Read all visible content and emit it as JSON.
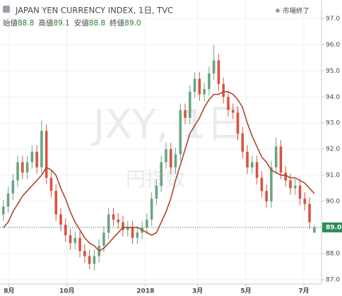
{
  "chart_data": {
    "type": "candlestick",
    "title": "JAPAN YEN CURRENCY INDEX, 1日, TVC",
    "status": "市場終了",
    "watermark": "JXY, 1日",
    "watermark_sub": "円指数",
    "header": [
      {
        "label": "始値",
        "value": "88.8"
      },
      {
        "label": "高値",
        "value": "89.1"
      },
      {
        "label": "安値",
        "value": "88.8"
      },
      {
        "label": "終値",
        "value": "89.0"
      }
    ],
    "last_price_label": "89.0",
    "up_color": "#6ba583",
    "down_color": "#d75442",
    "open": [
      89.5,
      89.8,
      90.3,
      90.8,
      91.5,
      91.1,
      91.5,
      91.9,
      91.3,
      92.7,
      90.9,
      90.4,
      89.5,
      89.1,
      88.7,
      88.4,
      88.6,
      88.1,
      87.9,
      87.6,
      87.9,
      88.3,
      88.8,
      89.5,
      89.3,
      89.2,
      88.9,
      89.0,
      88.6,
      88.8,
      89.0,
      89.3,
      90.1,
      90.6,
      91.5,
      92.0,
      91.3,
      91.8,
      93.5,
      93.2,
      94.2,
      94.7,
      94.1,
      94.3,
      94.9,
      95.4,
      94.5,
      94.0,
      93.5,
      93.4,
      92.6,
      91.9,
      91.3,
      91.5,
      90.9,
      90.4,
      90.0,
      91.3,
      92.1,
      91.1,
      90.8,
      90.5,
      90.6,
      90.1,
      89.9,
      88.8
    ],
    "high": [
      90.05,
      90.55,
      91.05,
      91.75,
      91.75,
      91.75,
      92.15,
      92.15,
      93.1,
      92.95,
      91.15,
      90.65,
      89.75,
      89.35,
      88.95,
      88.85,
      88.85,
      88.35,
      88.15,
      88.15,
      88.55,
      89.05,
      89.75,
      89.75,
      89.55,
      89.45,
      89.25,
      89.25,
      89.05,
      89.25,
      89.55,
      90.35,
      90.85,
      91.75,
      92.25,
      92.25,
      92.05,
      93.75,
      93.75,
      94.45,
      94.95,
      94.95,
      94.55,
      95.15,
      96.0,
      95.65,
      94.75,
      94.25,
      93.75,
      93.65,
      92.85,
      92.15,
      91.75,
      91.75,
      91.15,
      90.65,
      91.55,
      92.45,
      92.35,
      91.35,
      91.05,
      90.85,
      90.85,
      90.35,
      90.15,
      89.1
    ],
    "low": [
      89.25,
      89.55,
      90.05,
      90.55,
      90.85,
      90.85,
      91.25,
      91.05,
      91.05,
      90.65,
      90.15,
      89.25,
      88.85,
      88.45,
      88.15,
      88.15,
      87.85,
      87.65,
      87.4,
      87.35,
      87.65,
      88.05,
      88.55,
      89.05,
      88.95,
      88.65,
      88.65,
      88.35,
      88.35,
      88.55,
      88.75,
      89.05,
      89.85,
      90.35,
      91.25,
      91.05,
      91.05,
      91.55,
      92.95,
      92.95,
      93.95,
      93.85,
      93.85,
      94.05,
      94.65,
      94.25,
      93.75,
      93.25,
      93.15,
      92.35,
      91.65,
      91.05,
      91.05,
      90.65,
      90.15,
      89.75,
      89.75,
      91.05,
      90.85,
      90.55,
      90.25,
      90.25,
      89.85,
      89.65,
      88.95,
      88.8
    ],
    "close": [
      89.8,
      90.3,
      90.8,
      91.5,
      91.1,
      91.5,
      91.9,
      91.3,
      92.7,
      90.9,
      90.4,
      89.5,
      89.1,
      88.7,
      88.4,
      88.6,
      88.1,
      87.9,
      87.6,
      87.9,
      88.3,
      88.8,
      89.5,
      89.3,
      89.2,
      88.9,
      89.0,
      88.6,
      88.8,
      89.0,
      89.3,
      90.1,
      90.6,
      91.5,
      92.0,
      91.3,
      91.8,
      93.5,
      93.2,
      94.2,
      94.7,
      94.1,
      94.3,
      94.9,
      95.4,
      94.5,
      94.0,
      93.5,
      93.4,
      92.6,
      91.9,
      91.3,
      91.5,
      90.9,
      90.4,
      90.0,
      91.3,
      92.1,
      91.1,
      90.8,
      90.5,
      90.6,
      90.1,
      89.9,
      89.2,
      89.0
    ],
    "ma": {
      "color": "#b0452c",
      "values": [
        89.0,
        89.2,
        89.6,
        89.9,
        90.2,
        90.4,
        90.6,
        90.8,
        91.0,
        91.3,
        91.2,
        91.0,
        90.5,
        90.1,
        89.6,
        89.2,
        88.9,
        88.6,
        88.4,
        88.3,
        88.1,
        88.2,
        88.4,
        88.6,
        88.8,
        89.0,
        89.0,
        89.0,
        89.0,
        88.9,
        88.8,
        88.7,
        88.8,
        89.2,
        89.6,
        90.1,
        90.8,
        91.4,
        92.0,
        92.6,
        92.9,
        93.2,
        93.6,
        93.9,
        94.1,
        94.1,
        94.2,
        94.2,
        94.1,
        93.9,
        93.6,
        93.0,
        92.5,
        92.1,
        91.7,
        91.5,
        91.2,
        91.1,
        91.0,
        91.0,
        90.9,
        90.9,
        90.8,
        90.7,
        90.5,
        90.3
      ]
    },
    "xlim": [
      -0.7,
      66.5
    ],
    "xticks": [
      {
        "value": 1.2,
        "label": "8月"
      },
      {
        "value": 13.3,
        "label": "10月"
      },
      {
        "value": 29.7,
        "label": "2018"
      },
      {
        "value": 40.6,
        "label": "3月"
      },
      {
        "value": 50.7,
        "label": "5月"
      },
      {
        "value": 62.8,
        "label": "7月"
      }
    ],
    "ylim": [
      86.75,
      97.5
    ],
    "yticks": [
      {
        "value": 87,
        "label": "87.0"
      },
      {
        "value": 88,
        "label": "88.0"
      },
      {
        "value": 89,
        "label": "89.0"
      },
      {
        "value": 90,
        "label": "90.0"
      },
      {
        "value": 91,
        "label": "91.0"
      },
      {
        "value": 92,
        "label": "92.0"
      },
      {
        "value": 93,
        "label": "93.0"
      },
      {
        "value": 94,
        "label": "94.0"
      },
      {
        "value": 95,
        "label": "95.0"
      },
      {
        "value": 96,
        "label": "96.0"
      },
      {
        "value": 97,
        "label": "97.0"
      }
    ],
    "grid": true
  }
}
